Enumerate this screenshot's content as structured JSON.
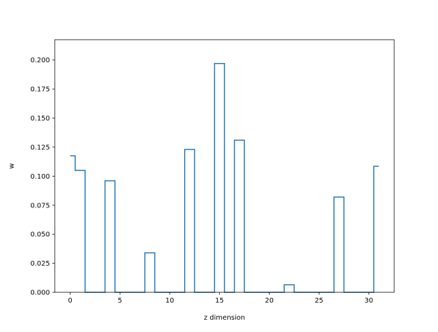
{
  "chart_data": {
    "type": "line",
    "drawstyle": "steps-mid",
    "xlabel": "z dimension",
    "ylabel": "w",
    "xlim": [
      -1.55,
      32.55
    ],
    "ylim": [
      0.0,
      0.2175
    ],
    "xticks": [
      0,
      5,
      10,
      15,
      20,
      25,
      30
    ],
    "xtick_labels": [
      "0",
      "5",
      "10",
      "15",
      "20",
      "25",
      "30"
    ],
    "yticks": [
      0.0,
      0.025,
      0.05,
      0.075,
      0.1,
      0.125,
      0.15,
      0.175,
      0.2
    ],
    "ytick_labels": [
      "0.000",
      "0.025",
      "0.050",
      "0.075",
      "0.100",
      "0.125",
      "0.150",
      "0.175",
      "0.200"
    ],
    "grid": false,
    "line_color": "#1f77b4",
    "series": [
      {
        "x": [
          0,
          1,
          2,
          3,
          4,
          5,
          6,
          7,
          8,
          9,
          10,
          11,
          12,
          13,
          14,
          15,
          16,
          17,
          18,
          19,
          20,
          21,
          22,
          23,
          24,
          25,
          26,
          27,
          28,
          29,
          30,
          31
        ],
        "values": [
          0.1175,
          0.105,
          0,
          0,
          0.096,
          0,
          0,
          0,
          0.034,
          0,
          0,
          0,
          0.123,
          0,
          0,
          0.197,
          0,
          0.131,
          0,
          0,
          0,
          0,
          0.0065,
          0,
          0,
          0,
          0,
          0.082,
          0,
          0,
          0,
          0.1085
        ]
      }
    ]
  }
}
